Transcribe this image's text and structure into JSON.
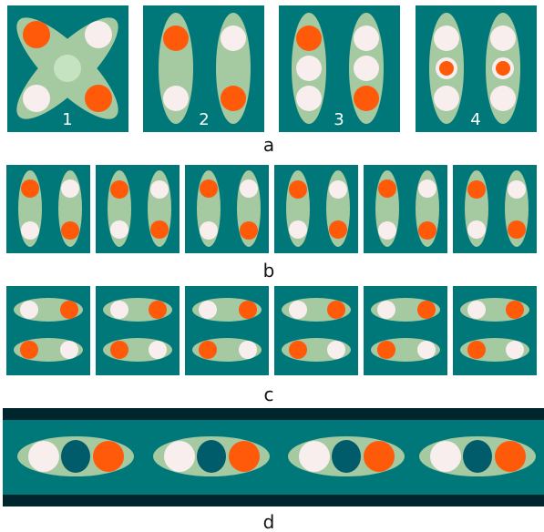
{
  "colors": {
    "background": "#ffffff",
    "panel": "#00787a",
    "lobe": "#a5c9a1",
    "center_spot": "#c5e3c1",
    "orange": "#ff5a0a",
    "white": "#f9eeee",
    "dark_core": "#005c6a",
    "dark_band": "#01252c",
    "caption": "#111111",
    "number_text": "#ffffff"
  },
  "row_a": {
    "caption": "a",
    "panels": [
      {
        "number": "1"
      },
      {
        "number": "2"
      },
      {
        "number": "3"
      },
      {
        "number": "4"
      }
    ]
  },
  "row_b": {
    "caption": "b",
    "panel_count": 6
  },
  "row_c": {
    "caption": "c",
    "panel_count": 6
  },
  "row_d": {
    "caption": "d",
    "unit_count": 4
  }
}
